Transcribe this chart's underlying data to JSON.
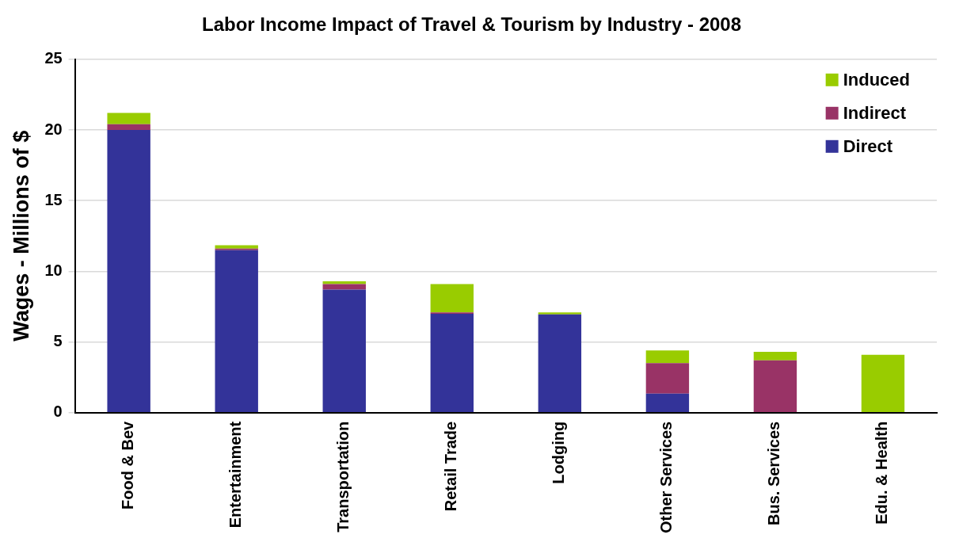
{
  "chart_data": {
    "type": "bar",
    "title": "Labor Income Impact of Travel & Tourism by Industry - 2008",
    "ylabel": "Wages - Millions of $",
    "categories": [
      "Food & Bev",
      "Entertainment",
      "Transportation",
      "Retail Trade",
      "Lodging",
      "Other Services",
      "Bus. Services",
      "Edu. & Health"
    ],
    "stacked": true,
    "ylim": [
      0,
      25
    ],
    "yticks": [
      0,
      5,
      10,
      15,
      20,
      25
    ],
    "grid": "y",
    "legend": "top right",
    "series": [
      {
        "name": "Direct",
        "color": "#333399",
        "values": [
          20.0,
          11.5,
          8.7,
          7.0,
          6.95,
          1.35,
          0,
          0
        ]
      },
      {
        "name": "Indirect",
        "color": "#993366",
        "values": [
          0.4,
          0.1,
          0.4,
          0.1,
          0,
          2.15,
          3.7,
          0
        ]
      },
      {
        "name": "Induced",
        "color": "#99cc00",
        "values": [
          0.8,
          0.25,
          0.2,
          2.0,
          0.15,
          0.9,
          0.6,
          4.1
        ]
      }
    ]
  }
}
